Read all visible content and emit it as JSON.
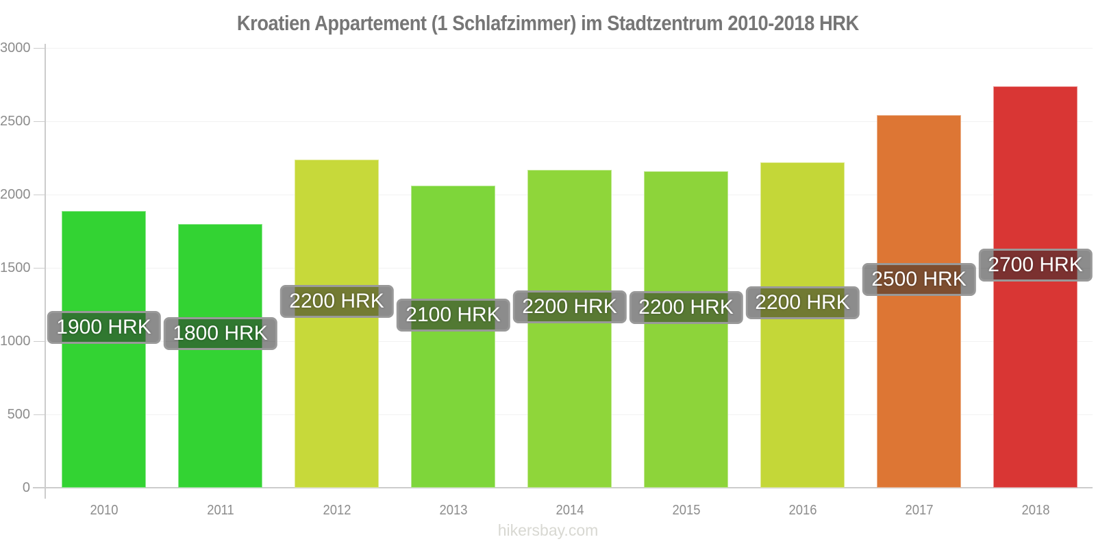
{
  "title": "Kroatien Appartement (1 Schlafzimmer) im Stadtzentrum 2010-2018 HRK",
  "footer": "hikersbay.com",
  "chart_data": {
    "type": "bar",
    "title": "Kroatien Appartement (1 Schlafzimmer) im Stadtzentrum 2010-2018 HRK",
    "categories": [
      "2010",
      "2011",
      "2012",
      "2013",
      "2014",
      "2015",
      "2016",
      "2017",
      "2018"
    ],
    "values": [
      1900,
      1800,
      2200,
      2100,
      2200,
      2200,
      2200,
      2500,
      2700
    ],
    "bar_values_precise": [
      1890,
      1800,
      2240,
      2060,
      2170,
      2160,
      2220,
      2540,
      2740
    ],
    "bar_labels": [
      "1900 HRK",
      "1800 HRK",
      "2200 HRK",
      "2100 HRK",
      "2200 HRK",
      "2200 HRK",
      "2200 HRK",
      "2500 HRK",
      "2700 HRK"
    ],
    "bar_colors": [
      "#33d333",
      "#33d333",
      "#c7d93a",
      "#7ed63a",
      "#8fd63a",
      "#8dd43a",
      "#c4d738",
      "#dd7634",
      "#d93634"
    ],
    "unit": "HRK",
    "xlabel": "",
    "ylabel": "",
    "ylim": [
      0,
      3000
    ],
    "yticks": [
      0,
      500,
      1000,
      1500,
      2000,
      2500,
      3000
    ],
    "grid": "horizontal-faint",
    "legend": "none",
    "source": "hikersbay.com",
    "colors": {
      "title_text": "#767676",
      "tick_label": "#8c8c8c",
      "axis": "#cccccc",
      "grid": "#f2f2f2",
      "badge_bg": "rgba(45,45,45,0.55)",
      "badge_border": "#999999",
      "badge_text": "#ffffff",
      "footer_text": "#d8d8d2"
    }
  }
}
